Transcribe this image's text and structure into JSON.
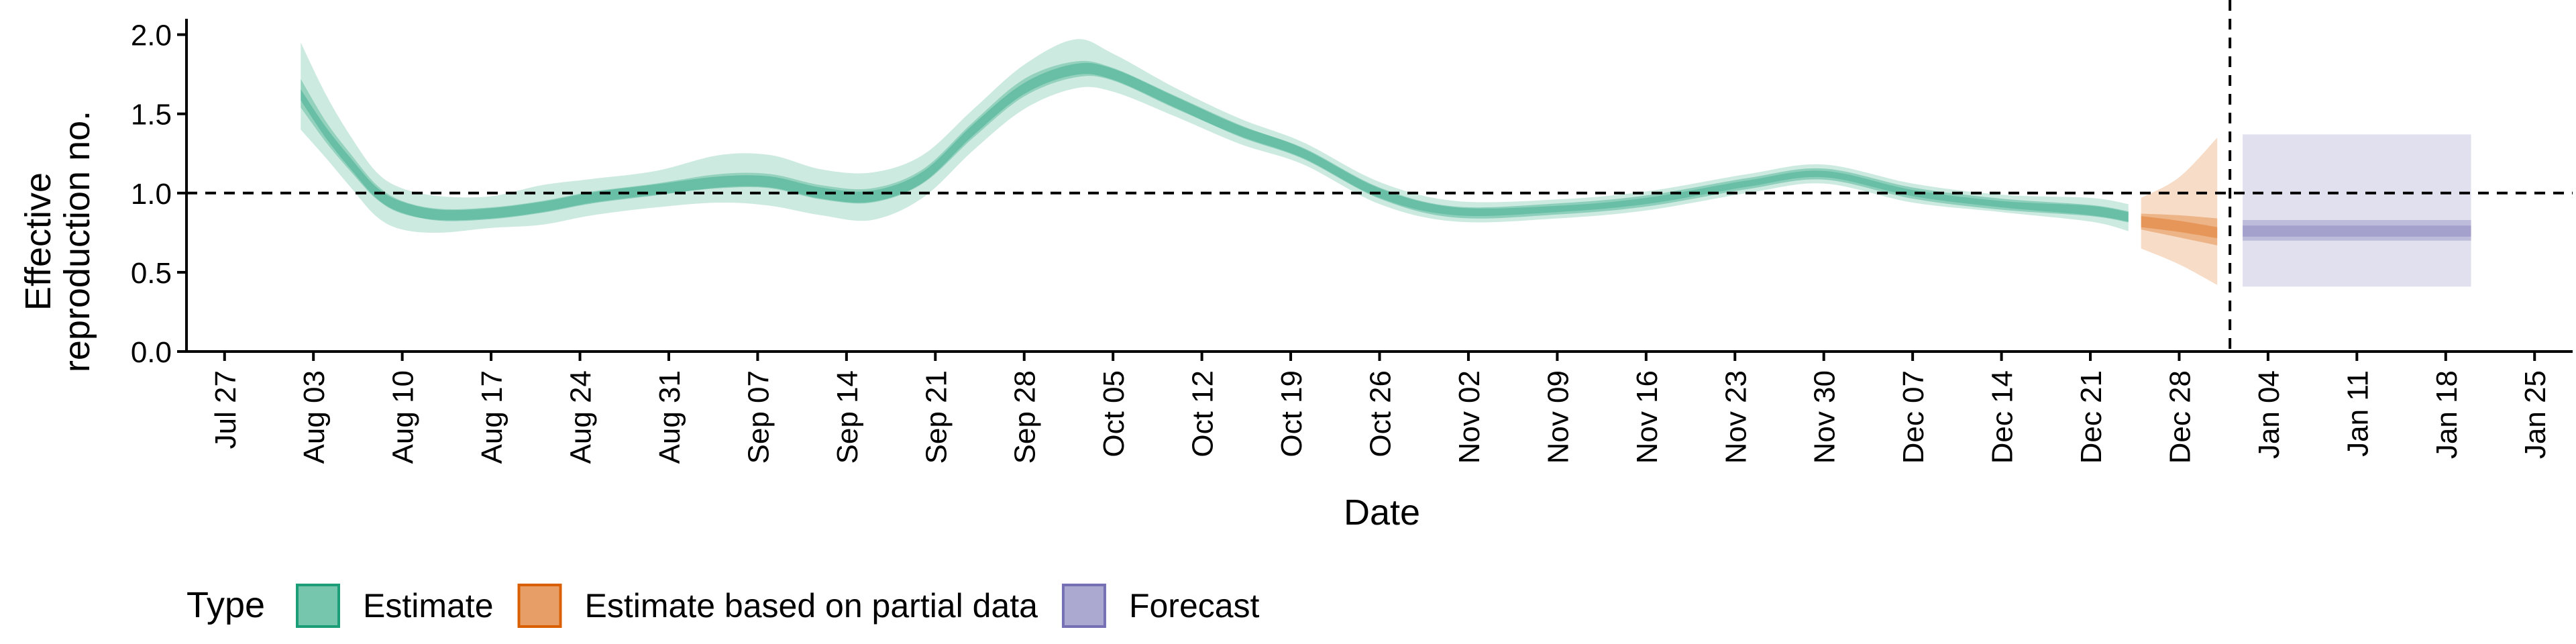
{
  "chart_data": {
    "type": "area",
    "xlabel": "Date",
    "ylabel_lines": [
      "Effective",
      "reproduction no."
    ],
    "ylim": [
      0,
      2.1
    ],
    "y_ticks": [
      0.0,
      0.5,
      1.0,
      1.5,
      2.0
    ],
    "y_tick_labels": [
      "0.0",
      "0.5",
      "1.0",
      "1.5",
      "2.0"
    ],
    "x_range": [
      "2020-07-24",
      "2021-01-28"
    ],
    "x_ticks": [
      "2020-07-27",
      "2020-08-03",
      "2020-08-10",
      "2020-08-17",
      "2020-08-24",
      "2020-08-31",
      "2020-09-07",
      "2020-09-14",
      "2020-09-21",
      "2020-09-28",
      "2020-10-05",
      "2020-10-12",
      "2020-10-19",
      "2020-10-26",
      "2020-11-02",
      "2020-11-09",
      "2020-11-16",
      "2020-11-23",
      "2020-11-30",
      "2020-12-07",
      "2020-12-14",
      "2020-12-21",
      "2020-12-28",
      "2021-01-04",
      "2021-01-11",
      "2021-01-18",
      "2021-01-25"
    ],
    "x_tick_labels": [
      "Jul 27",
      "Aug 03",
      "Aug 10",
      "Aug 17",
      "Aug 24",
      "Aug 31",
      "Sep 07",
      "Sep 14",
      "Sep 21",
      "Sep 28",
      "Oct 05",
      "Oct 12",
      "Oct 19",
      "Oct 26",
      "Nov 02",
      "Nov 09",
      "Nov 16",
      "Nov 23",
      "Nov 30",
      "Dec 07",
      "Dec 14",
      "Dec 21",
      "Dec 28",
      "Jan 04",
      "Jan 11",
      "Jan 18",
      "Jan 25"
    ],
    "reference_line_y": 1.0,
    "vertical_line_date": "2021-01-01",
    "grid": false,
    "legend": {
      "position": "bottom-left",
      "title": "Type",
      "items": [
        {
          "label": "Estimate",
          "color": "#1b9e77"
        },
        {
          "label": "Estimate based on partial data",
          "color": "#d95f02"
        },
        {
          "label": "Forecast",
          "color": "#7570b3"
        }
      ]
    },
    "series": [
      {
        "name": "Estimate",
        "color": "#1b9e77",
        "columns": [
          "date",
          "median",
          "inner_low",
          "inner_high",
          "outer_low",
          "outer_high"
        ],
        "points": [
          [
            "2020-08-02",
            1.62,
            1.54,
            1.72,
            1.4,
            1.95
          ],
          [
            "2020-08-04",
            1.38,
            1.32,
            1.45,
            1.22,
            1.62
          ],
          [
            "2020-08-06",
            1.18,
            1.13,
            1.24,
            1.03,
            1.35
          ],
          [
            "2020-08-08",
            1.0,
            0.96,
            1.05,
            0.85,
            1.13
          ],
          [
            "2020-08-10",
            0.91,
            0.87,
            0.95,
            0.77,
            1.03
          ],
          [
            "2020-08-13",
            0.86,
            0.83,
            0.9,
            0.75,
            0.98
          ],
          [
            "2020-08-17",
            0.87,
            0.84,
            0.91,
            0.78,
            0.98
          ],
          [
            "2020-08-21",
            0.91,
            0.88,
            0.95,
            0.8,
            1.05
          ],
          [
            "2020-08-25",
            0.97,
            0.94,
            1.01,
            0.86,
            1.09
          ],
          [
            "2020-08-30",
            1.02,
            0.99,
            1.06,
            0.91,
            1.14
          ],
          [
            "2020-09-04",
            1.07,
            1.03,
            1.12,
            0.94,
            1.24
          ],
          [
            "2020-09-08",
            1.07,
            1.03,
            1.12,
            0.92,
            1.24
          ],
          [
            "2020-09-12",
            1.0,
            0.96,
            1.05,
            0.86,
            1.15
          ],
          [
            "2020-09-16",
            0.98,
            0.94,
            1.03,
            0.83,
            1.13
          ],
          [
            "2020-09-20",
            1.1,
            1.06,
            1.15,
            0.97,
            1.24
          ],
          [
            "2020-09-24",
            1.4,
            1.35,
            1.45,
            1.27,
            1.53
          ],
          [
            "2020-09-28",
            1.66,
            1.61,
            1.72,
            1.53,
            1.81
          ],
          [
            "2020-10-02",
            1.78,
            1.73,
            1.83,
            1.66,
            1.97
          ],
          [
            "2020-10-05",
            1.75,
            1.71,
            1.79,
            1.64,
            1.88
          ],
          [
            "2020-10-10",
            1.57,
            1.53,
            1.61,
            1.48,
            1.66
          ],
          [
            "2020-10-15",
            1.39,
            1.36,
            1.43,
            1.31,
            1.47
          ],
          [
            "2020-10-20",
            1.25,
            1.22,
            1.28,
            1.18,
            1.32
          ],
          [
            "2020-10-26",
            1.0,
            0.97,
            1.03,
            0.93,
            1.07
          ],
          [
            "2020-11-01",
            0.88,
            0.86,
            0.91,
            0.82,
            0.95
          ],
          [
            "2020-11-09",
            0.9,
            0.88,
            0.92,
            0.84,
            0.96
          ],
          [
            "2020-11-16",
            0.95,
            0.93,
            0.97,
            0.89,
            1.01
          ],
          [
            "2020-11-24",
            1.06,
            1.04,
            1.08,
            1.0,
            1.12
          ],
          [
            "2020-11-30",
            1.12,
            1.1,
            1.14,
            1.06,
            1.18
          ],
          [
            "2020-12-07",
            1.0,
            0.98,
            1.02,
            0.94,
            1.06
          ],
          [
            "2020-12-14",
            0.93,
            0.91,
            0.95,
            0.88,
            0.99
          ],
          [
            "2020-12-21",
            0.89,
            0.86,
            0.92,
            0.82,
            0.97
          ],
          [
            "2020-12-24",
            0.85,
            0.82,
            0.88,
            0.76,
            0.93
          ]
        ]
      },
      {
        "name": "Estimate based on partial data",
        "color": "#d95f02",
        "columns": [
          "date",
          "median",
          "inner_low",
          "inner_high",
          "outer_low",
          "outer_high"
        ],
        "points": [
          [
            "2020-12-25",
            0.82,
            0.77,
            0.87,
            0.65,
            0.97
          ],
          [
            "2020-12-28",
            0.79,
            0.72,
            0.86,
            0.55,
            1.1
          ],
          [
            "2020-12-31",
            0.75,
            0.67,
            0.84,
            0.42,
            1.35
          ]
        ]
      },
      {
        "name": "Forecast",
        "color": "#7570b3",
        "columns": [
          "date",
          "median",
          "inner_low",
          "inner_high",
          "outer_low",
          "outer_high"
        ],
        "points": [
          [
            "2021-01-02",
            0.76,
            0.7,
            0.83,
            0.41,
            1.37
          ],
          [
            "2021-01-20",
            0.76,
            0.7,
            0.83,
            0.41,
            1.37
          ]
        ]
      }
    ]
  }
}
